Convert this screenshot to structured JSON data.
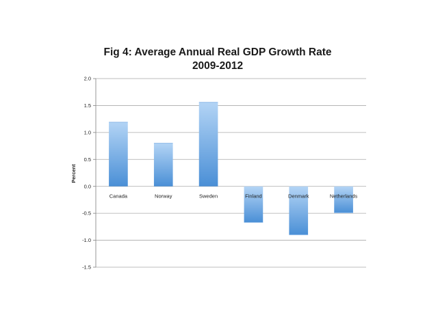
{
  "chart_data": {
    "type": "bar",
    "title": [
      "Fig 4: Average Annual Real GDP Growth Rate",
      "2009-2012"
    ],
    "xlabel": "",
    "ylabel": "Percent",
    "categories": [
      "Canada",
      "Norway",
      "Sweden",
      "Finland",
      "Denmark",
      "Netherlands"
    ],
    "values": [
      1.19,
      0.8,
      1.56,
      -0.67,
      -0.9,
      -0.49
    ],
    "ylim": [
      -1.5,
      2.0
    ],
    "yticks": [
      2.0,
      1.5,
      1.0,
      0.5,
      0.0,
      -0.5,
      -1.0,
      -1.5
    ],
    "ytick_labels": [
      "2.0",
      "1.5",
      "1.0",
      "0.5",
      "0.0",
      "-0.5",
      "-1.0",
      "-1.5"
    ],
    "grid": true,
    "legend": "none",
    "bar_color_top": "#b3d4f5",
    "bar_color_bottom": "#4a8fd6"
  }
}
